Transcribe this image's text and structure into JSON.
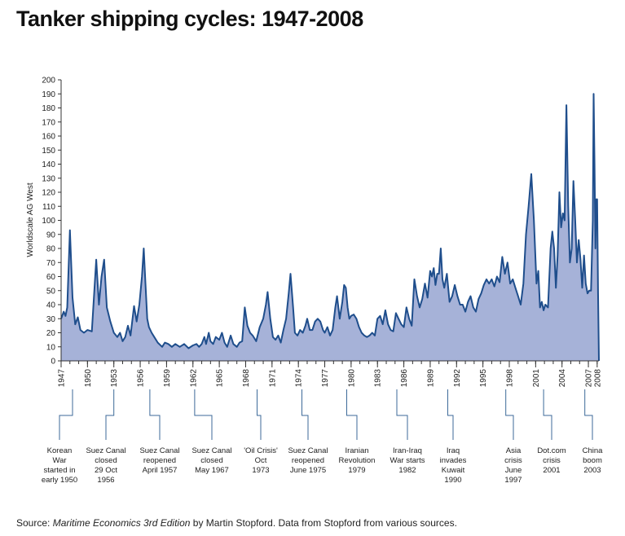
{
  "title": "Tanker shipping cycles: 1947-2008",
  "source": {
    "prefix": "Source: ",
    "book": "Maritime Economics 3rd Edition",
    "suffix": " by Martin Stopford. Data from Stopford from various sources."
  },
  "colors": {
    "line": "#1f4e8c",
    "fill": "#a6b2d8",
    "axis": "#333333",
    "leader": "#3d6a99"
  },
  "chart_data": {
    "type": "area",
    "ylabel": "Worldscale AG West",
    "xlabel": "",
    "ylim": [
      0,
      200
    ],
    "yticks": [
      0,
      10,
      20,
      30,
      40,
      50,
      60,
      70,
      80,
      90,
      100,
      110,
      120,
      130,
      140,
      150,
      160,
      170,
      180,
      190,
      200
    ],
    "xlim": [
      1947,
      2008.2
    ],
    "xtick_labels": [
      "1947",
      "1950",
      "1953",
      "1956",
      "1959",
      "1962",
      "1965",
      "1968",
      "1971",
      "1974",
      "1977",
      "1980",
      "1983",
      "1986",
      "1989",
      "1992",
      "1995",
      "1998",
      "2001",
      "2004",
      "2007",
      "2008"
    ],
    "series": [
      {
        "values": [
          [
            1947,
            30
          ],
          [
            1947.3,
            35
          ],
          [
            1947.5,
            32
          ],
          [
            1947.7,
            38
          ],
          [
            1948,
            93
          ],
          [
            1948.3,
            45
          ],
          [
            1948.6,
            26
          ],
          [
            1948.9,
            31
          ],
          [
            1949.2,
            22
          ],
          [
            1949.6,
            20
          ],
          [
            1950,
            22
          ],
          [
            1950.5,
            21
          ],
          [
            1951,
            72
          ],
          [
            1951.3,
            40
          ],
          [
            1951.6,
            60
          ],
          [
            1951.9,
            72
          ],
          [
            1952.2,
            38
          ],
          [
            1952.6,
            28
          ],
          [
            1953,
            20
          ],
          [
            1953.4,
            17
          ],
          [
            1953.7,
            20
          ],
          [
            1954,
            14
          ],
          [
            1954.3,
            17
          ],
          [
            1954.6,
            25
          ],
          [
            1954.9,
            18
          ],
          [
            1955.3,
            39
          ],
          [
            1955.6,
            28
          ],
          [
            1955.9,
            40
          ],
          [
            1956.2,
            60
          ],
          [
            1956.4,
            80
          ],
          [
            1956.6,
            55
          ],
          [
            1956.8,
            30
          ],
          [
            1957,
            24
          ],
          [
            1957.3,
            20
          ],
          [
            1957.6,
            17
          ],
          [
            1958,
            13
          ],
          [
            1958.5,
            10
          ],
          [
            1958.8,
            13
          ],
          [
            1959.2,
            12
          ],
          [
            1959.6,
            10
          ],
          [
            1960,
            12
          ],
          [
            1960.5,
            10
          ],
          [
            1961,
            12
          ],
          [
            1961.5,
            9
          ],
          [
            1962,
            11
          ],
          [
            1962.4,
            12
          ],
          [
            1962.7,
            10
          ],
          [
            1963,
            12
          ],
          [
            1963.3,
            17
          ],
          [
            1963.5,
            12
          ],
          [
            1963.8,
            20
          ],
          [
            1964,
            14
          ],
          [
            1964.3,
            12
          ],
          [
            1964.6,
            17
          ],
          [
            1965,
            15
          ],
          [
            1965.3,
            20
          ],
          [
            1965.6,
            13
          ],
          [
            1965.9,
            10
          ],
          [
            1966.3,
            18
          ],
          [
            1966.6,
            12
          ],
          [
            1967,
            10
          ],
          [
            1967.3,
            13
          ],
          [
            1967.6,
            14
          ],
          [
            1967.9,
            38
          ],
          [
            1968.2,
            25
          ],
          [
            1968.5,
            20
          ],
          [
            1968.8,
            18
          ],
          [
            1969.2,
            14
          ],
          [
            1969.6,
            24
          ],
          [
            1970,
            30
          ],
          [
            1970.3,
            40
          ],
          [
            1970.5,
            49
          ],
          [
            1970.8,
            30
          ],
          [
            1971.1,
            17
          ],
          [
            1971.4,
            15
          ],
          [
            1971.7,
            18
          ],
          [
            1972,
            13
          ],
          [
            1972.3,
            22
          ],
          [
            1972.6,
            30
          ],
          [
            1972.9,
            48
          ],
          [
            1973.1,
            62
          ],
          [
            1973.4,
            38
          ],
          [
            1973.6,
            20
          ],
          [
            1973.9,
            18
          ],
          [
            1974.2,
            22
          ],
          [
            1974.5,
            20
          ],
          [
            1974.8,
            25
          ],
          [
            1975,
            30
          ],
          [
            1975.3,
            22
          ],
          [
            1975.6,
            22
          ],
          [
            1975.9,
            28
          ],
          [
            1976.2,
            30
          ],
          [
            1976.5,
            28
          ],
          [
            1976.8,
            22
          ],
          [
            1977,
            20
          ],
          [
            1977.3,
            24
          ],
          [
            1977.6,
            18
          ],
          [
            1977.9,
            22
          ],
          [
            1978.2,
            38
          ],
          [
            1978.4,
            46
          ],
          [
            1978.7,
            30
          ],
          [
            1979,
            42
          ],
          [
            1979.2,
            54
          ],
          [
            1979.4,
            52
          ],
          [
            1979.6,
            38
          ],
          [
            1979.8,
            30
          ],
          [
            1980,
            32
          ],
          [
            1980.3,
            33
          ],
          [
            1980.6,
            30
          ],
          [
            1980.9,
            24
          ],
          [
            1981.2,
            20
          ],
          [
            1981.5,
            18
          ],
          [
            1981.8,
            17
          ],
          [
            1982.1,
            18
          ],
          [
            1982.4,
            20
          ],
          [
            1982.7,
            18
          ],
          [
            1983,
            30
          ],
          [
            1983.3,
            32
          ],
          [
            1983.6,
            26
          ],
          [
            1983.9,
            36
          ],
          [
            1984.2,
            26
          ],
          [
            1984.5,
            22
          ],
          [
            1984.8,
            21
          ],
          [
            1985.1,
            34
          ],
          [
            1985.4,
            30
          ],
          [
            1985.7,
            26
          ],
          [
            1986,
            24
          ],
          [
            1986.3,
            38
          ],
          [
            1986.6,
            30
          ],
          [
            1986.9,
            25
          ],
          [
            1987.2,
            58
          ],
          [
            1987.5,
            46
          ],
          [
            1987.8,
            38
          ],
          [
            1988.1,
            44
          ],
          [
            1988.4,
            55
          ],
          [
            1988.7,
            45
          ],
          [
            1989,
            64
          ],
          [
            1989.2,
            60
          ],
          [
            1989.4,
            66
          ],
          [
            1989.6,
            54
          ],
          [
            1989.8,
            62
          ],
          [
            1990,
            62
          ],
          [
            1990.2,
            80
          ],
          [
            1990.4,
            58
          ],
          [
            1990.6,
            52
          ],
          [
            1990.9,
            62
          ],
          [
            1991.2,
            42
          ],
          [
            1991.5,
            46
          ],
          [
            1991.8,
            54
          ],
          [
            1992.1,
            46
          ],
          [
            1992.4,
            40
          ],
          [
            1992.7,
            40
          ],
          [
            1993,
            35
          ],
          [
            1993.3,
            42
          ],
          [
            1993.6,
            46
          ],
          [
            1993.9,
            38
          ],
          [
            1994.2,
            35
          ],
          [
            1994.5,
            44
          ],
          [
            1994.8,
            48
          ],
          [
            1995.1,
            54
          ],
          [
            1995.4,
            58
          ],
          [
            1995.7,
            55
          ],
          [
            1996,
            58
          ],
          [
            1996.3,
            53
          ],
          [
            1996.6,
            60
          ],
          [
            1996.9,
            56
          ],
          [
            1997.2,
            74
          ],
          [
            1997.5,
            62
          ],
          [
            1997.8,
            70
          ],
          [
            1998.1,
            55
          ],
          [
            1998.4,
            58
          ],
          [
            1998.7,
            52
          ],
          [
            1999,
            46
          ],
          [
            1999.3,
            40
          ],
          [
            1999.6,
            55
          ],
          [
            1999.9,
            90
          ],
          [
            2000.2,
            110
          ],
          [
            2000.5,
            133
          ],
          [
            2000.8,
            100
          ],
          [
            2001.1,
            55
          ],
          [
            2001.3,
            64
          ],
          [
            2001.5,
            38
          ],
          [
            2001.7,
            42
          ],
          [
            2001.9,
            36
          ],
          [
            2002.1,
            40
          ],
          [
            2002.4,
            38
          ],
          [
            2002.7,
            80
          ],
          [
            2002.9,
            92
          ],
          [
            2003.1,
            80
          ],
          [
            2003.3,
            52
          ],
          [
            2003.5,
            75
          ],
          [
            2003.7,
            120
          ],
          [
            2003.9,
            95
          ],
          [
            2004.1,
            105
          ],
          [
            2004.3,
            100
          ],
          [
            2004.5,
            182
          ],
          [
            2004.7,
            110
          ],
          [
            2004.9,
            70
          ],
          [
            2005.1,
            80
          ],
          [
            2005.3,
            128
          ],
          [
            2005.5,
            100
          ],
          [
            2005.7,
            70
          ],
          [
            2005.9,
            86
          ],
          [
            2006.1,
            72
          ],
          [
            2006.3,
            52
          ],
          [
            2006.5,
            75
          ],
          [
            2006.7,
            55
          ],
          [
            2006.9,
            48
          ],
          [
            2007.1,
            50
          ],
          [
            2007.3,
            50
          ],
          [
            2007.5,
            100
          ],
          [
            2007.6,
            190
          ],
          [
            2007.7,
            140
          ],
          [
            2007.8,
            80
          ],
          [
            2007.9,
            115
          ],
          [
            2008,
            115
          ],
          [
            2008.1,
            50
          ],
          [
            2008.2,
            0
          ]
        ]
      }
    ],
    "events": [
      {
        "x": 1948.3,
        "lines": [
          "Korean",
          "War",
          "started in",
          "early 1950"
        ]
      },
      {
        "x": 1953.0,
        "lines": [
          "Suez Canal",
          "closed",
          "29 Oct",
          "1956"
        ]
      },
      {
        "x": 1957.1,
        "lines": [
          "Suez Canal",
          "reopened",
          "April 1957"
        ]
      },
      {
        "x": 1962.2,
        "lines": [
          "Suez Canal",
          "closed",
          "May 1967"
        ]
      },
      {
        "x": 1969.3,
        "lines": [
          "'Oil Crisis'",
          "Oct",
          "1973"
        ]
      },
      {
        "x": 1974.4,
        "lines": [
          "Suez Canal",
          "reopened",
          "June 1975"
        ]
      },
      {
        "x": 1979.5,
        "lines": [
          "Iranian",
          "Revolution",
          "1979"
        ]
      },
      {
        "x": 1985.2,
        "lines": [
          "Iran-Iraq",
          "War starts",
          "1982"
        ]
      },
      {
        "x": 1991.0,
        "lines": [
          "Iraq",
          "invades",
          "Kuwait",
          "1990"
        ]
      },
      {
        "x": 1997.6,
        "lines": [
          "Asia",
          "crisis",
          "June",
          "1997"
        ]
      },
      {
        "x": 2001.9,
        "lines": [
          "Dot.com",
          "crisis",
          "2001"
        ]
      },
      {
        "x": 2006.6,
        "lines": [
          "China",
          "boom",
          "2003"
        ]
      }
    ]
  }
}
